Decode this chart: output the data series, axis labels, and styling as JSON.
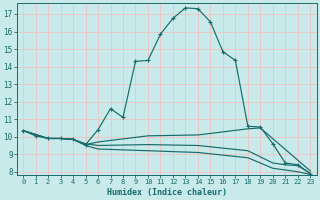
{
  "bg_color": "#c8eaea",
  "grid_color": "#e8c8c8",
  "line_color": "#1a6b6b",
  "xlabel": "Humidex (Indice chaleur)",
  "xlim": [
    -0.5,
    23.5
  ],
  "ylim": [
    7.8,
    17.6
  ],
  "yticks": [
    8,
    9,
    10,
    11,
    12,
    13,
    14,
    15,
    16,
    17
  ],
  "xticks": [
    0,
    1,
    2,
    3,
    4,
    5,
    6,
    7,
    8,
    9,
    10,
    11,
    12,
    13,
    14,
    15,
    16,
    17,
    18,
    19,
    20,
    21,
    22,
    23
  ],
  "curve1_x": [
    0,
    1,
    2,
    3,
    4,
    5,
    6,
    7,
    8,
    9,
    10,
    11,
    12,
    13,
    14,
    15,
    16,
    17,
    18,
    19,
    20,
    21,
    22,
    23
  ],
  "curve1_y": [
    10.35,
    10.05,
    9.9,
    9.9,
    9.85,
    9.55,
    10.4,
    11.6,
    11.1,
    14.3,
    14.35,
    15.85,
    16.75,
    17.35,
    17.3,
    16.55,
    14.85,
    14.35,
    10.6,
    10.55,
    9.6,
    8.5,
    8.4,
    7.9
  ],
  "curve2_x": [
    0,
    2,
    3,
    4,
    5,
    6,
    10,
    14,
    18,
    19,
    23
  ],
  "curve2_y": [
    10.35,
    9.9,
    9.9,
    9.85,
    9.55,
    9.7,
    10.05,
    10.1,
    10.45,
    10.5,
    8.05
  ],
  "curve3_x": [
    0,
    2,
    3,
    4,
    5,
    6,
    10,
    14,
    18,
    20,
    21,
    22,
    23
  ],
  "curve3_y": [
    10.35,
    9.9,
    9.9,
    9.85,
    9.6,
    9.5,
    9.55,
    9.5,
    9.2,
    8.5,
    8.4,
    8.35,
    7.9
  ],
  "curve4_x": [
    0,
    2,
    3,
    4,
    5,
    6,
    10,
    14,
    18,
    20,
    21,
    22,
    23
  ],
  "curve4_y": [
    10.35,
    9.9,
    9.9,
    9.85,
    9.5,
    9.3,
    9.2,
    9.1,
    8.8,
    8.2,
    8.1,
    8.0,
    7.85
  ]
}
